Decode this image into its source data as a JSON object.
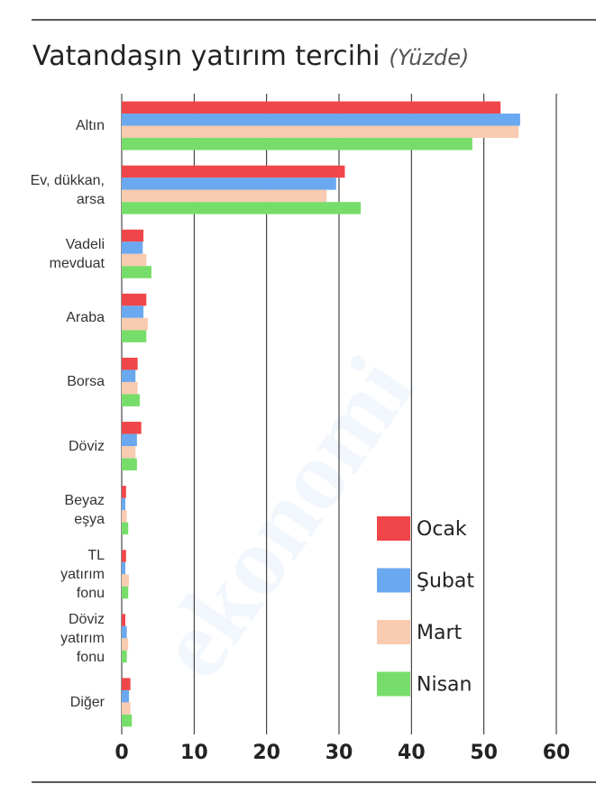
{
  "chart_data": {
    "type": "hbar",
    "title": "Vatandaşın yatırım tercihi",
    "subtitle": "(Yüzde)",
    "watermark": "ekonomi",
    "categories": [
      "Altın",
      "Ev, dükkan,\narsa",
      "Vadeli\nmevduat",
      "Araba",
      "Borsa",
      "Döviz",
      "Beyaz\neşya",
      "TL\nyatırım\nfonu",
      "Döviz\nyatırım\nfonu",
      "Diğer"
    ],
    "series": [
      {
        "name": "Ocak",
        "color": "#f0464a",
        "values": [
          52.3,
          30.8,
          3.0,
          3.4,
          2.2,
          2.7,
          0.6,
          0.6,
          0.5,
          1.2
        ]
      },
      {
        "name": "Şubat",
        "color": "#6aa8f0",
        "values": [
          55.0,
          29.6,
          2.9,
          3.0,
          1.9,
          2.1,
          0.5,
          0.5,
          0.7,
          1.0
        ]
      },
      {
        "name": "Mart",
        "color": "#f9cbb0",
        "values": [
          54.8,
          28.3,
          3.4,
          3.6,
          2.2,
          1.9,
          0.7,
          1.0,
          0.9,
          1.2
        ]
      },
      {
        "name": "Nisan",
        "color": "#77dd6a",
        "values": [
          48.4,
          33.0,
          4.1,
          3.4,
          2.5,
          2.1,
          0.9,
          0.9,
          0.7,
          1.4
        ]
      }
    ],
    "xlim": [
      0,
      60
    ],
    "xticks": [
      0,
      10,
      20,
      30,
      40,
      50,
      60
    ],
    "grid": true,
    "legend": "lower right"
  }
}
